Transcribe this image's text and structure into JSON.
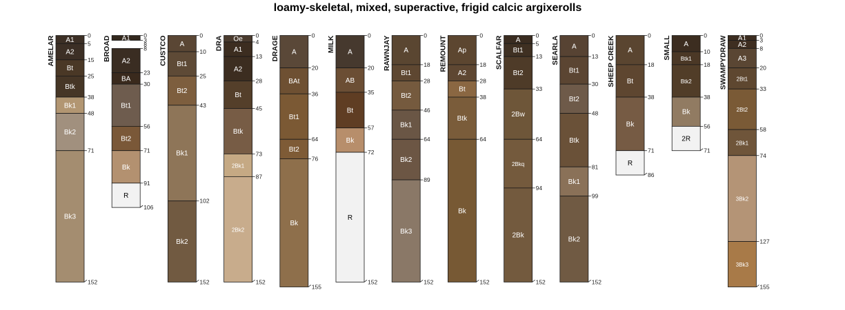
{
  "title": "loamy-skeletal, mixed, superactive, frigid calcic argixerolls",
  "profiles": [
    {
      "name": "AMELAR",
      "horizons": [
        {
          "name": "A1",
          "top": 0,
          "bottom": 5,
          "color": "#3c2f25"
        },
        {
          "name": "A2",
          "top": 5,
          "bottom": 15,
          "color": "#3c2f25"
        },
        {
          "name": "Bt",
          "top": 15,
          "bottom": 25,
          "color": "#4a3826"
        },
        {
          "name": "Btk",
          "top": 25,
          "bottom": 38,
          "color": "#463626"
        },
        {
          "name": "Bk1",
          "top": 38,
          "bottom": 48,
          "color": "#b29672"
        },
        {
          "name": "Bk2",
          "top": 48,
          "bottom": 71,
          "color": "#a1907e"
        },
        {
          "name": "Bk3",
          "top": 71,
          "bottom": 152,
          "color": "#a48d70"
        }
      ]
    },
    {
      "name": "BROAD",
      "horizons": [
        {
          "name": "A1",
          "top": 0,
          "bottom": 3,
          "color": "#33281e"
        },
        {
          "name": "A2",
          "top": 8,
          "bottom": 23,
          "color": "#3a2d22"
        },
        {
          "name": "BA",
          "top": 23,
          "bottom": 30,
          "color": "#3a2a1d"
        },
        {
          "name": "Bt1",
          "top": 30,
          "bottom": 56,
          "color": "#6e5c4e"
        },
        {
          "name": "Bt2",
          "top": 56,
          "bottom": 71,
          "color": "#7a5838"
        },
        {
          "name": "Bk",
          "top": 71,
          "bottom": 91,
          "color": "#b39170"
        },
        {
          "name": "R",
          "top": 91,
          "bottom": 106,
          "color": "#f2f2f2"
        }
      ],
      "extra_depth_labels": [
        {
          "value": 8,
          "depth": 3
        }
      ]
    },
    {
      "name": "CUSTCO",
      "horizons": [
        {
          "name": "A",
          "top": 0,
          "bottom": 10,
          "color": "#5a4634"
        },
        {
          "name": "Bt1",
          "top": 10,
          "bottom": 25,
          "color": "#5e4a36"
        },
        {
          "name": "Bt2",
          "top": 25,
          "bottom": 43,
          "color": "#7d5e3e"
        },
        {
          "name": "Bk1",
          "top": 43,
          "bottom": 102,
          "color": "#8e7558"
        },
        {
          "name": "Bk2",
          "top": 102,
          "bottom": 152,
          "color": "#715a41"
        }
      ]
    },
    {
      "name": "DRA",
      "horizons": [
        {
          "name": "Oe",
          "top": 0,
          "bottom": 4,
          "color": "#4a3b2e"
        },
        {
          "name": "A1",
          "top": 4,
          "bottom": 13,
          "color": "#3c2d20"
        },
        {
          "name": "A2",
          "top": 13,
          "bottom": 28,
          "color": "#3c2d20"
        },
        {
          "name": "Bt",
          "top": 28,
          "bottom": 45,
          "color": "#543f2a"
        },
        {
          "name": "Btk",
          "top": 45,
          "bottom": 73,
          "color": "#775c45"
        },
        {
          "name": "2Bk1",
          "top": 73,
          "bottom": 87,
          "color": "#c5a984"
        },
        {
          "name": "2Bk2",
          "top": 87,
          "bottom": 152,
          "color": "#c8ac8c"
        }
      ]
    },
    {
      "name": "DRAGE",
      "horizons": [
        {
          "name": "A",
          "top": 0,
          "bottom": 20,
          "color": "#5a4838"
        },
        {
          "name": "BAt",
          "top": 20,
          "bottom": 36,
          "color": "#6e5032"
        },
        {
          "name": "Bt1",
          "top": 36,
          "bottom": 64,
          "color": "#7b5934"
        },
        {
          "name": "Bt2",
          "top": 64,
          "bottom": 76,
          "color": "#7e5b36"
        },
        {
          "name": "Bk",
          "top": 76,
          "bottom": 155,
          "color": "#8e6f4b"
        }
      ]
    },
    {
      "name": "MILK",
      "horizons": [
        {
          "name": "A",
          "top": 0,
          "bottom": 20,
          "color": "#46392e"
        },
        {
          "name": "AB",
          "top": 20,
          "bottom": 35,
          "color": "#6b4e34"
        },
        {
          "name": "Bt",
          "top": 35,
          "bottom": 57,
          "color": "#5f3d23"
        },
        {
          "name": "Bk",
          "top": 57,
          "bottom": 72,
          "color": "#b78e6b"
        },
        {
          "name": "R",
          "top": 72,
          "bottom": 152,
          "color": "#f2f2f2"
        }
      ]
    },
    {
      "name": "RAWNJAY",
      "horizons": [
        {
          "name": "A",
          "top": 0,
          "bottom": 18,
          "color": "#5a4631"
        },
        {
          "name": "Bt1",
          "top": 18,
          "bottom": 28,
          "color": "#5e4731"
        },
        {
          "name": "Bt2",
          "top": 28,
          "bottom": 46,
          "color": "#755a3e"
        },
        {
          "name": "Bk1",
          "top": 46,
          "bottom": 64,
          "color": "#6a5645"
        },
        {
          "name": "Bk2",
          "top": 64,
          "bottom": 89,
          "color": "#6c5644"
        },
        {
          "name": "Bk3",
          "top": 89,
          "bottom": 152,
          "color": "#8a7867"
        }
      ]
    },
    {
      "name": "REMOUNT",
      "horizons": [
        {
          "name": "Ap",
          "top": 0,
          "bottom": 18,
          "color": "#5c4630"
        },
        {
          "name": "A2",
          "top": 18,
          "bottom": 28,
          "color": "#5e4732"
        },
        {
          "name": "Bt",
          "top": 28,
          "bottom": 38,
          "color": "#8a6742"
        },
        {
          "name": "Btk",
          "top": 38,
          "bottom": 64,
          "color": "#7a5c3a"
        },
        {
          "name": "Bk",
          "top": 64,
          "bottom": 152,
          "color": "#775934"
        }
      ]
    },
    {
      "name": "SCALFAR",
      "horizons": [
        {
          "name": "A",
          "top": 0,
          "bottom": 5,
          "color": "#3a2c20"
        },
        {
          "name": "Bt1",
          "top": 5,
          "bottom": 13,
          "color": "#3f3022"
        },
        {
          "name": "Bt2",
          "top": 13,
          "bottom": 33,
          "color": "#4e3b28"
        },
        {
          "name": "2Bw",
          "top": 33,
          "bottom": 64,
          "color": "#6e5639"
        },
        {
          "name": "2Bkq",
          "top": 64,
          "bottom": 94,
          "color": "#745a3d"
        },
        {
          "name": "2Bk",
          "top": 94,
          "bottom": 152,
          "color": "#735a3e"
        }
      ]
    },
    {
      "name": "SEARLA",
      "horizons": [
        {
          "name": "A",
          "top": 0,
          "bottom": 13,
          "color": "#574333"
        },
        {
          "name": "Bt1",
          "top": 13,
          "bottom": 30,
          "color": "#5b4532"
        },
        {
          "name": "Bt2",
          "top": 30,
          "bottom": 48,
          "color": "#6e5a49"
        },
        {
          "name": "Btk",
          "top": 48,
          "bottom": 81,
          "color": "#6a5138"
        },
        {
          "name": "Bk1",
          "top": 81,
          "bottom": 99,
          "color": "#8a7158"
        },
        {
          "name": "Bk2",
          "top": 99,
          "bottom": 152,
          "color": "#705a43"
        }
      ]
    },
    {
      "name": "SHEEP CREEK",
      "horizons": [
        {
          "name": "A",
          "top": 0,
          "bottom": 18,
          "color": "#5a4530"
        },
        {
          "name": "Bt",
          "top": 18,
          "bottom": 38,
          "color": "#5e4630"
        },
        {
          "name": "Bk",
          "top": 38,
          "bottom": 71,
          "color": "#765b44"
        },
        {
          "name": "R",
          "top": 71,
          "bottom": 86,
          "color": "#f2f2f2"
        }
      ]
    },
    {
      "name": "SMALL",
      "horizons": [
        {
          "name": "A",
          "top": 0,
          "bottom": 10,
          "color": "#3c2d20"
        },
        {
          "name": "Btk1",
          "top": 10,
          "bottom": 18,
          "color": "#4b3826"
        },
        {
          "name": "Btk2",
          "top": 18,
          "bottom": 38,
          "color": "#513d28"
        },
        {
          "name": "Bk",
          "top": 38,
          "bottom": 56,
          "color": "#917b62"
        },
        {
          "name": "2R",
          "top": 56,
          "bottom": 71,
          "color": "#f2f2f2"
        }
      ]
    },
    {
      "name": "SWAMPYDRAW",
      "horizons": [
        {
          "name": "A1",
          "top": 0,
          "bottom": 3,
          "color": "#3c2d20"
        },
        {
          "name": "A2",
          "top": 3,
          "bottom": 8,
          "color": "#3e2e21"
        },
        {
          "name": "A3",
          "top": 8,
          "bottom": 20,
          "color": "#5a4633"
        },
        {
          "name": "2Bt1",
          "top": 20,
          "bottom": 33,
          "color": "#5e4730"
        },
        {
          "name": "2Bt2",
          "top": 33,
          "bottom": 58,
          "color": "#7a5a36"
        },
        {
          "name": "2Bk1",
          "top": 58,
          "bottom": 74,
          "color": "#6f553a"
        },
        {
          "name": "3Bk2",
          "top": 74,
          "bottom": 127,
          "color": "#b49476"
        },
        {
          "name": "3Bk3",
          "top": 127,
          "bottom": 155,
          "color": "#a87a48"
        }
      ]
    }
  ]
}
